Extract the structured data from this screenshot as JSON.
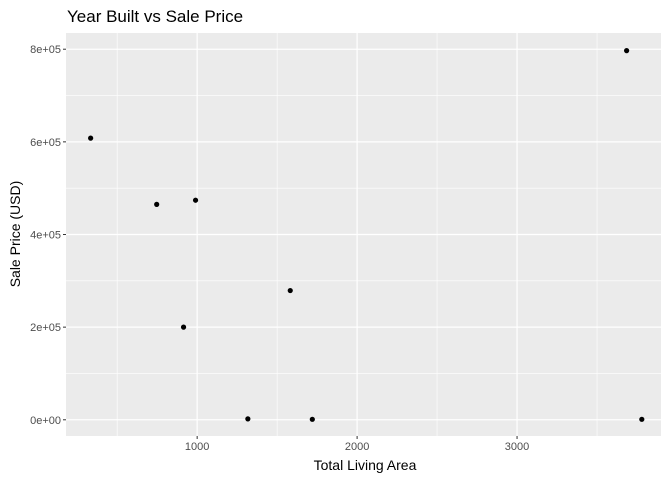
{
  "chart_data": {
    "type": "scatter",
    "title": "Year Built vs Sale Price",
    "xlabel": "Total Living Area",
    "ylabel": "Sale Price (USD)",
    "xlim": [
      180,
      3900
    ],
    "ylim": [
      -35000,
      835000
    ],
    "x_major_ticks": [
      1000,
      2000,
      3000
    ],
    "x_minor_ticks": [
      500,
      1500,
      2500,
      3500
    ],
    "y_major_ticks": [
      0,
      200000,
      400000,
      600000,
      800000
    ],
    "y_minor_ticks": [
      100000,
      300000,
      500000,
      700000
    ],
    "x_tick_labels": [
      "1000",
      "2000",
      "3000"
    ],
    "y_tick_labels": [
      "0e+00",
      "2e+05",
      "4e+05",
      "6e+05",
      "8e+05"
    ],
    "grid": true,
    "background_color": "#ebebeb",
    "grid_color": "#ffffff",
    "point_color": "#000000",
    "points": [
      {
        "x": 334,
        "y": 608000
      },
      {
        "x": 747,
        "y": 465000
      },
      {
        "x": 990,
        "y": 474000
      },
      {
        "x": 915,
        "y": 200000
      },
      {
        "x": 1317,
        "y": 2000
      },
      {
        "x": 1582,
        "y": 279000
      },
      {
        "x": 1720,
        "y": 1000
      },
      {
        "x": 3685,
        "y": 797000
      },
      {
        "x": 3780,
        "y": 1000
      }
    ]
  }
}
